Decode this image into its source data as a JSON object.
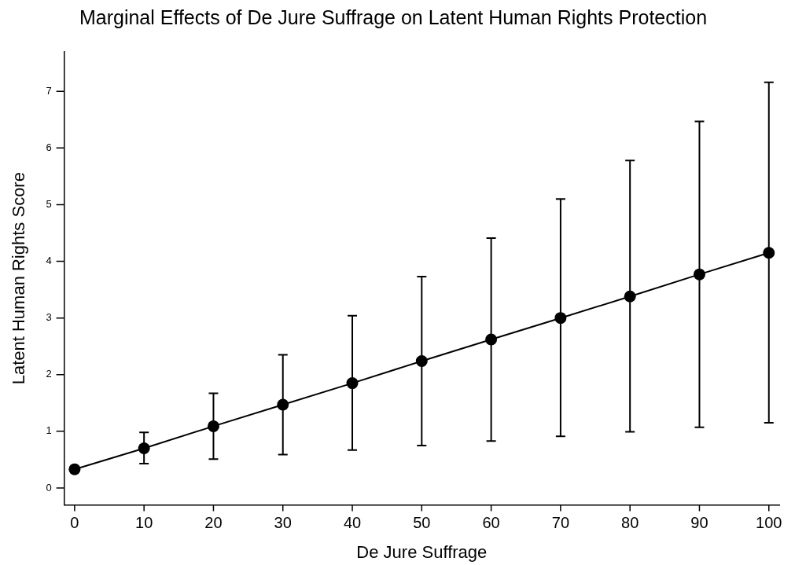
{
  "chart_data": {
    "type": "line",
    "title": "Marginal Effects of De Jure Suffrage on Latent Human Rights Protection",
    "xlabel": "De Jure Suffrage",
    "ylabel": "Latent Human Rights Score",
    "x": [
      0,
      10,
      20,
      30,
      40,
      50,
      60,
      70,
      80,
      90,
      100
    ],
    "series": [
      {
        "color": "#000000",
        "values": [
          0.33,
          0.7,
          1.09,
          1.47,
          1.85,
          2.24,
          2.62,
          3.0,
          3.38,
          3.77,
          4.15
        ],
        "errors": [
          null,
          [
            0.43,
            0.98
          ],
          [
            0.51,
            1.67
          ],
          [
            0.59,
            2.35
          ],
          [
            0.67,
            3.04
          ],
          [
            0.75,
            3.73
          ],
          [
            0.83,
            4.41
          ],
          [
            0.91,
            5.1
          ],
          [
            0.99,
            5.78
          ],
          [
            1.07,
            6.47
          ],
          [
            1.15,
            7.16
          ]
        ]
      }
    ],
    "xlim": [
      -1.5,
      101.5
    ],
    "ylim": [
      -0.3,
      7.7
    ],
    "xticks": [
      0,
      10,
      20,
      30,
      40,
      50,
      60,
      70,
      80,
      90,
      100
    ],
    "yticks": [
      0,
      1,
      2,
      3,
      4,
      5,
      6,
      7
    ],
    "marker": "circle",
    "line_style": "solid",
    "grid": false,
    "legend": false
  }
}
